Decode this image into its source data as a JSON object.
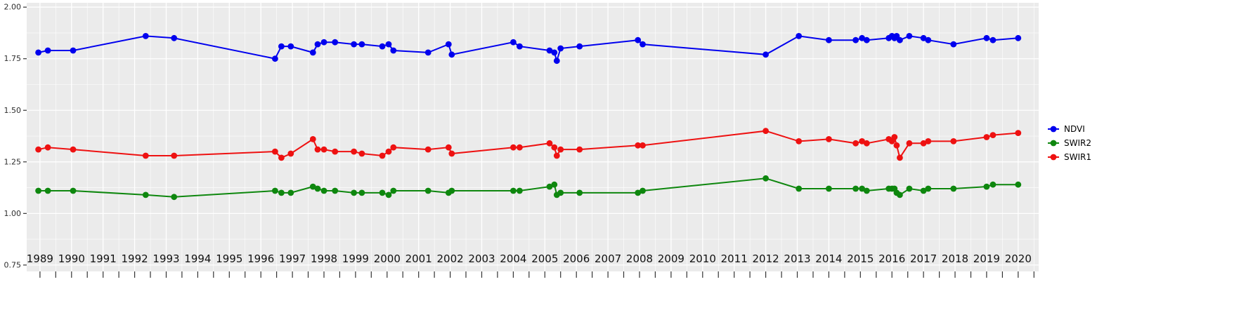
{
  "chart_data": {
    "type": "line",
    "title": "",
    "xlabel": "",
    "ylabel": "",
    "legend_position": "right",
    "grid": true,
    "panel_bg": "#ebebeb",
    "grid_color": "#ffffff",
    "axis_text_color": "#2e2e2e",
    "x_label_color": "#111111",
    "xlim": [
      1988.58,
      2020.65
    ],
    "ylim": [
      0.719,
      2.021
    ],
    "x_ticks": [
      1989,
      1990,
      1991,
      1992,
      1993,
      1994,
      1995,
      1996,
      1997,
      1998,
      1999,
      2000,
      2001,
      2002,
      2003,
      2004,
      2005,
      2006,
      2007,
      2008,
      2009,
      2010,
      2011,
      2012,
      2013,
      2014,
      2015,
      2016,
      2017,
      2018,
      2019,
      2020
    ],
    "y_ticks": [
      0.75,
      1.0,
      1.25,
      1.5,
      1.75,
      2.0
    ],
    "y_tick_labels": [
      "0.75",
      "1.00",
      "1.25",
      "1.50",
      "1.75",
      "2.00"
    ],
    "y_minor": [
      0.875,
      1.125,
      1.375,
      1.625,
      1.875
    ],
    "x": [
      1988.95,
      1989.25,
      1990.05,
      1992.35,
      1993.25,
      1996.45,
      1996.65,
      1996.95,
      1997.65,
      1997.8,
      1998.0,
      1998.35,
      1998.95,
      1999.2,
      1999.85,
      2000.05,
      2000.2,
      2001.3,
      2001.95,
      2002.05,
      2004.0,
      2004.2,
      2005.15,
      2005.3,
      2005.38,
      2005.5,
      2006.1,
      2007.95,
      2008.1,
      2012.0,
      2013.05,
      2014.0,
      2014.85,
      2015.05,
      2015.2,
      2015.9,
      2016.0,
      2016.08,
      2016.15,
      2016.25,
      2016.55,
      2017.0,
      2017.15,
      2017.95,
      2019.0,
      2019.2,
      2020.0
    ],
    "series": [
      {
        "name": "NDVI",
        "color": "#0000ee",
        "values": [
          1.78,
          1.79,
          1.79,
          1.86,
          1.85,
          1.75,
          1.81,
          1.81,
          1.78,
          1.82,
          1.83,
          1.83,
          1.82,
          1.82,
          1.81,
          1.82,
          1.79,
          1.78,
          1.82,
          1.77,
          1.83,
          1.81,
          1.79,
          1.78,
          1.74,
          1.8,
          1.81,
          1.84,
          1.82,
          1.77,
          1.86,
          1.84,
          1.84,
          1.85,
          1.84,
          1.85,
          1.86,
          1.85,
          1.86,
          1.84,
          1.86,
          1.85,
          1.84,
          1.82,
          1.85,
          1.84,
          1.85
        ]
      },
      {
        "name": "SWIR2",
        "color": "#0e870e",
        "values": [
          1.11,
          1.11,
          1.11,
          1.09,
          1.08,
          1.11,
          1.1,
          1.1,
          1.13,
          1.12,
          1.11,
          1.11,
          1.1,
          1.1,
          1.1,
          1.09,
          1.11,
          1.11,
          1.1,
          1.11,
          1.11,
          1.11,
          1.13,
          1.14,
          1.09,
          1.1,
          1.1,
          1.1,
          1.11,
          1.17,
          1.12,
          1.12,
          1.12,
          1.12,
          1.11,
          1.12,
          1.12,
          1.12,
          1.1,
          1.09,
          1.12,
          1.11,
          1.12,
          1.12,
          1.13,
          1.14,
          1.14
        ]
      },
      {
        "name": "SWIR1",
        "color": "#ee1111",
        "values": [
          1.31,
          1.32,
          1.31,
          1.28,
          1.28,
          1.3,
          1.27,
          1.29,
          1.36,
          1.31,
          1.31,
          1.3,
          1.3,
          1.29,
          1.28,
          1.3,
          1.32,
          1.31,
          1.32,
          1.29,
          1.32,
          1.32,
          1.34,
          1.32,
          1.28,
          1.31,
          1.31,
          1.33,
          1.33,
          1.4,
          1.35,
          1.36,
          1.34,
          1.35,
          1.34,
          1.36,
          1.35,
          1.37,
          1.33,
          1.27,
          1.34,
          1.34,
          1.35,
          1.35,
          1.37,
          1.38,
          1.39
        ]
      }
    ],
    "legend_order": [
      "NDVI",
      "SWIR2",
      "SWIR1"
    ]
  }
}
